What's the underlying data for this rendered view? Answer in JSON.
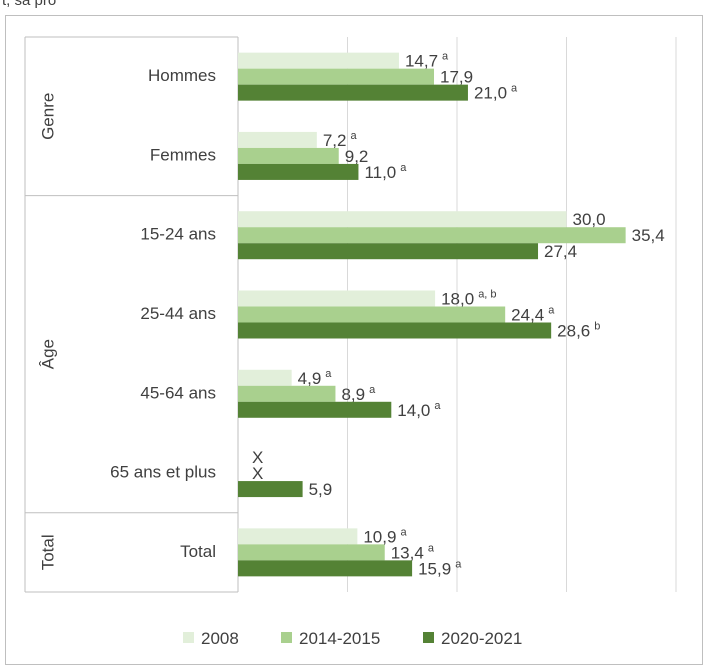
{
  "header": {
    "sliver_text": "t, sa pro"
  },
  "chart_data": {
    "type": "bar",
    "orientation": "horizontal",
    "xlim": [
      0,
      40
    ],
    "grid": true,
    "legend_position": "bottom",
    "groups": [
      {
        "name": "Genre",
        "categories": [
          "Hommes",
          "Femmes"
        ]
      },
      {
        "name": "Âge",
        "categories": [
          "15-24 ans",
          "25-44 ans",
          "45-64 ans",
          "65 ans et plus"
        ]
      },
      {
        "name": "Total",
        "categories": [
          ""
        ]
      }
    ],
    "categories": [
      "Hommes",
      "Femmes",
      "15-24 ans",
      "25-44 ans",
      "45-64 ans",
      "65 ans et plus",
      "Total"
    ],
    "series": [
      {
        "name": "2008",
        "color": "#e2efda",
        "values": [
          14.7,
          7.2,
          30.0,
          18.0,
          4.9,
          null,
          10.9
        ],
        "labels": [
          "14,7",
          "7,2",
          "30,0",
          "18,0",
          "4,9",
          "X",
          "10,9"
        ],
        "notes": [
          "a",
          "a",
          "",
          "a, b",
          "a",
          "",
          "a"
        ]
      },
      {
        "name": "2014-2015",
        "color": "#a9d08e",
        "values": [
          17.9,
          9.2,
          35.4,
          24.4,
          8.9,
          null,
          13.4
        ],
        "labels": [
          "17,9",
          "9,2",
          "35,4",
          "24,4",
          "8,9",
          "X",
          "13,4"
        ],
        "notes": [
          "",
          "",
          "",
          "a",
          "a",
          "",
          "a"
        ]
      },
      {
        "name": "2020-2021",
        "color": "#548235",
        "values": [
          21.0,
          11.0,
          27.4,
          28.6,
          14.0,
          5.9,
          15.9
        ],
        "labels": [
          "21,0",
          "11,0",
          "27,4",
          "28,6",
          "14,0",
          "5,9",
          "15,9"
        ],
        "notes": [
          "a",
          "a",
          "",
          "b",
          "a",
          "",
          "a"
        ]
      }
    ]
  }
}
